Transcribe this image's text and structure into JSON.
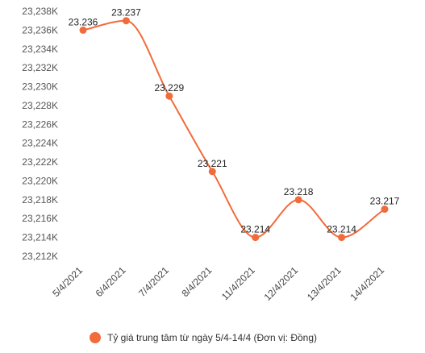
{
  "chart_data": {
    "type": "line",
    "smooth": true,
    "categories": [
      "5/4/2021",
      "6/4/2021",
      "7/4/2021",
      "8/4/2021",
      "11/4/2021",
      "12/4/2021",
      "13/4/2021",
      "14/4/2021"
    ],
    "series": [
      {
        "name": "Tỷ giá trung tâm từ ngày 5/4-14/4 (Đơn vị: Đồng)",
        "values": [
          23236,
          23237,
          23229,
          23221,
          23214,
          23218,
          23214,
          23217
        ],
        "data_labels": [
          "23.236",
          "23.237",
          "23.229",
          "23.221",
          "23.214",
          "23.218",
          "23.214",
          "23.217"
        ],
        "color": "#f26b3a"
      }
    ],
    "y_ticks": [
      23238,
      23236,
      23234,
      23232,
      23230,
      23228,
      23226,
      23224,
      23222,
      23220,
      23218,
      23216,
      23214,
      23212
    ],
    "y_tick_labels": [
      "23,238K",
      "23,236K",
      "23,234K",
      "23,232K",
      "23,230K",
      "23,228K",
      "23,226K",
      "23,224K",
      "23,222K",
      "23,220K",
      "23,218K",
      "23,216K",
      "23,214K",
      "23,212K"
    ],
    "ylim": [
      23212,
      23238
    ],
    "grid": false,
    "legend_position": "bottom",
    "title": "",
    "xlabel": "",
    "ylabel": ""
  }
}
